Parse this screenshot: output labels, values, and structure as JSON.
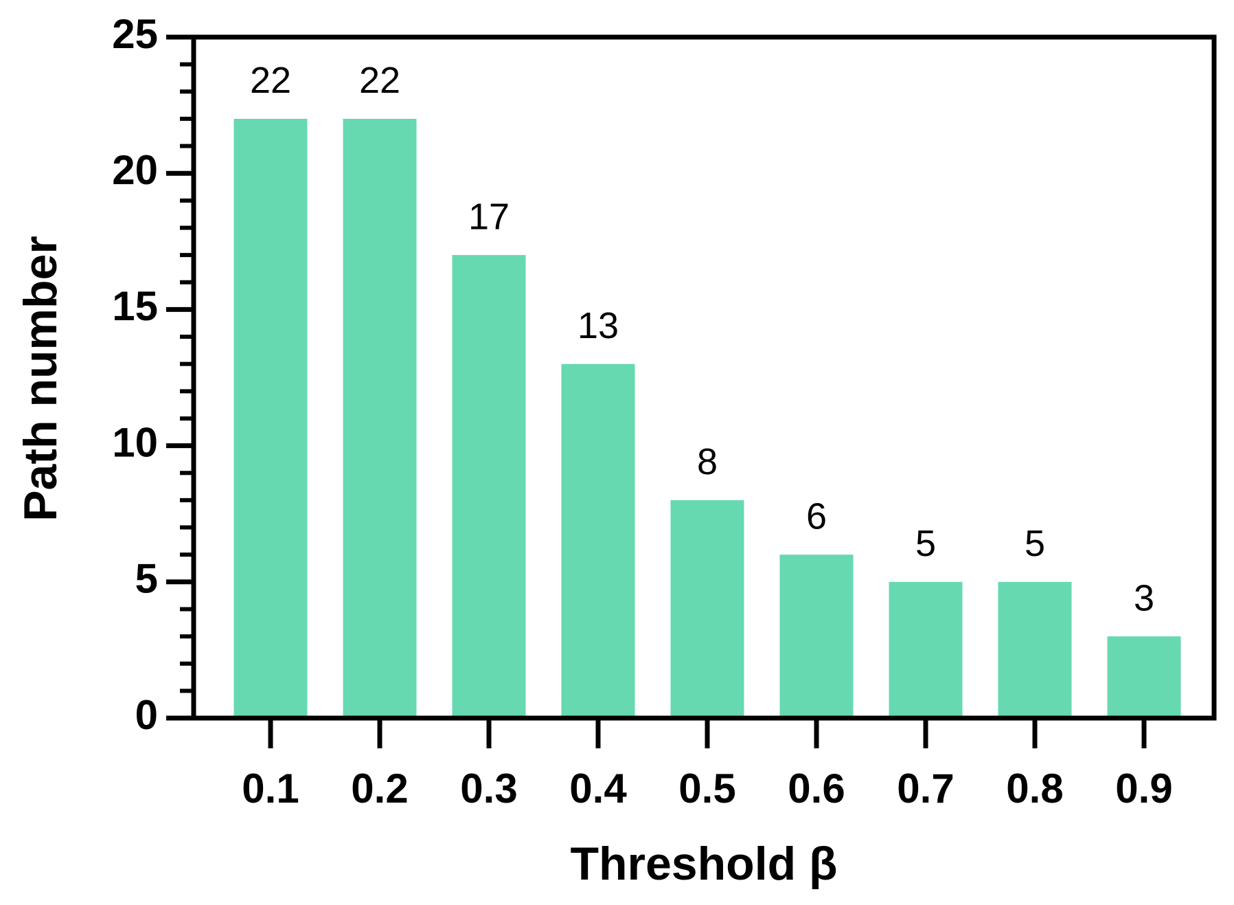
{
  "chart_data": {
    "type": "bar",
    "x_label": "Threshold β",
    "y_label": "Path number",
    "categories": [
      "0.1",
      "0.2",
      "0.3",
      "0.4",
      "0.5",
      "0.6",
      "0.7",
      "0.8",
      "0.9"
    ],
    "values": [
      22,
      22,
      17,
      13,
      8,
      6,
      5,
      5,
      3
    ],
    "color": "#66d9b0",
    "ylim": [
      0,
      25
    ],
    "yticks": [
      0,
      5,
      10,
      15,
      20,
      25
    ],
    "yminorticks": [
      0,
      1,
      2,
      3,
      4,
      5,
      6,
      7,
      8,
      9,
      10,
      11,
      12,
      13,
      14,
      15,
      16,
      17,
      18,
      19,
      20,
      21,
      22,
      23,
      24,
      25
    ],
    "grid": false,
    "value_labels_shown": true
  }
}
